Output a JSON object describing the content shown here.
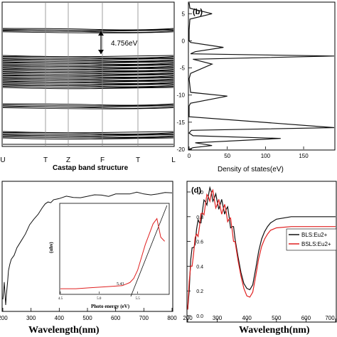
{
  "panels": {
    "band": {
      "xticks": [
        "U",
        "T",
        "Z",
        "F",
        "T",
        "L"
      ],
      "xlabel": "Castap band structure",
      "gap_annotation": "4.756eV"
    },
    "dos": {
      "panel_label": "(b)",
      "xlabel": "Density of states(eV)",
      "xticks": [
        "0",
        "50",
        "100",
        "150"
      ],
      "yticks": [
        "5",
        "0",
        "-5",
        "-10",
        "-15",
        "-20"
      ]
    },
    "absorption": {
      "xticks": [
        "200",
        "300",
        "400",
        "500",
        "600",
        "700",
        "800"
      ],
      "xlabel": "Wavelength(nm)",
      "inset": {
        "ylabel": "(αhν)",
        "xlabel": "Photo energy (eV)",
        "xticks": [
          "4.5",
          "5.0",
          "5.5"
        ],
        "annotation": "5.43"
      }
    },
    "emission": {
      "panel_label": "(d)",
      "xticks": [
        "200",
        "300",
        "400",
        "500",
        "600",
        "700"
      ],
      "yticks": [
        "0.0",
        "0.2",
        "0.4",
        "0.6",
        "0.8",
        "1.0"
      ],
      "xlabel": "Wavelength(nm)",
      "legend": [
        "BLS:Eu2+",
        "BSLS:Eu2+"
      ]
    }
  },
  "colors": {
    "black": "#111111",
    "red": "#e02020"
  },
  "chart_data": [
    {
      "type": "line",
      "xlabel": "Density of states(eV)",
      "ylim": [
        -20,
        7
      ],
      "xlim": [
        0,
        190
      ],
      "series": [
        {
          "x": [
            0,
            1,
            30,
            1,
            0,
            0,
            2,
            45,
            8,
            2,
            190,
            5,
            30,
            2,
            0,
            2,
            50,
            2,
            0,
            0,
            190,
            3,
            0,
            5,
            120,
            8,
            30,
            5,
            0
          ],
          "y": [
            7,
            6,
            5,
            4,
            2,
            0,
            -0.3,
            -1.2,
            -2,
            -2.4,
            -2.8,
            -3.4,
            -4.3,
            -6,
            -7,
            -9.5,
            -10.2,
            -11.5,
            -12,
            -14,
            -16,
            -16.5,
            -17,
            -17.5,
            -18,
            -18.8,
            -19.3,
            -19.7,
            -20
          ]
        }
      ]
    },
    {
      "type": "line",
      "xlabel": "Wavelength(nm)",
      "xlim": [
        200,
        800
      ],
      "series": [
        {
          "x": [
            200,
            205,
            210,
            215,
            220,
            230,
            250,
            280,
            310,
            340,
            360,
            380,
            400,
            450,
            500,
            550,
            600,
            650,
            700,
            750,
            800
          ],
          "y": [
            0.05,
            0.2,
            0.0,
            0.15,
            0.3,
            0.4,
            0.5,
            0.62,
            0.75,
            0.85,
            0.9,
            0.92,
            0.93,
            0.94,
            0.95,
            0.96,
            0.97,
            0.97,
            0.97,
            0.97,
            0.98
          ]
        }
      ],
      "inset": {
        "type": "line",
        "xlabel": "Photo energy (eV)",
        "ylabel": "(αhν)",
        "x": [
          4.5,
          4.7,
          4.9,
          5.1,
          5.3,
          5.4,
          5.45,
          5.5,
          5.6,
          5.65,
          5.7,
          5.75,
          5.8,
          5.85
        ],
        "y": [
          0.02,
          0.02,
          0.03,
          0.04,
          0.05,
          0.08,
          0.12,
          0.2,
          0.45,
          0.55,
          0.65,
          0.7,
          0.52,
          0.48
        ],
        "tangent_intercept": 5.43
      }
    },
    {
      "type": "line",
      "xlabel": "Wavelength(nm)",
      "xlim": [
        200,
        700
      ],
      "ylim": [
        0,
        1.05
      ],
      "series": [
        {
          "name": "BLS:Eu2+",
          "x": [
            200,
            210,
            220,
            230,
            240,
            250,
            260,
            270,
            280,
            290,
            300,
            310,
            320,
            330,
            340,
            350,
            360,
            370,
            380,
            390,
            400,
            410,
            420,
            430,
            440,
            450,
            460,
            470,
            480,
            500,
            550,
            600,
            650,
            700
          ],
          "y": [
            0.05,
            0.45,
            0.55,
            0.7,
            0.75,
            0.85,
            0.92,
            0.97,
            1.0,
            0.95,
            0.92,
            0.9,
            0.88,
            0.86,
            0.8,
            0.72,
            0.62,
            0.48,
            0.35,
            0.26,
            0.22,
            0.21,
            0.25,
            0.38,
            0.52,
            0.62,
            0.68,
            0.72,
            0.75,
            0.78,
            0.8,
            0.8,
            0.8,
            0.8
          ]
        },
        {
          "name": "BSLS:Eu2+",
          "x": [
            200,
            210,
            220,
            230,
            240,
            250,
            260,
            270,
            280,
            290,
            300,
            310,
            320,
            330,
            340,
            350,
            360,
            370,
            380,
            390,
            400,
            410,
            420,
            430,
            440,
            450,
            460,
            470,
            480,
            500,
            550,
            600,
            650,
            700
          ],
          "y": [
            0.05,
            0.4,
            0.5,
            0.66,
            0.72,
            0.83,
            0.9,
            0.96,
            0.99,
            0.94,
            0.9,
            0.88,
            0.86,
            0.84,
            0.78,
            0.7,
            0.6,
            0.45,
            0.32,
            0.22,
            0.16,
            0.15,
            0.19,
            0.32,
            0.46,
            0.56,
            0.62,
            0.66,
            0.69,
            0.71,
            0.72,
            0.72,
            0.72,
            0.72
          ]
        }
      ]
    }
  ]
}
